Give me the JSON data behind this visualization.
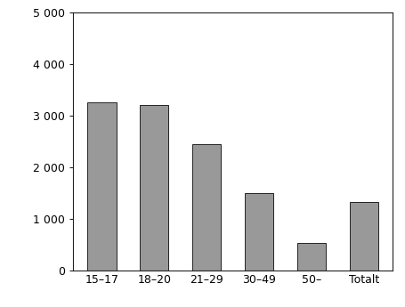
{
  "categories": [
    "15–17",
    "18–20",
    "21–29",
    "30–49",
    "50–",
    "Totalt"
  ],
  "values": [
    3250,
    3200,
    2450,
    1500,
    520,
    1330
  ],
  "bar_color": "#999999",
  "bar_edge_color": "#222222",
  "ylim": [
    0,
    5000
  ],
  "yticks": [
    0,
    1000,
    2000,
    3000,
    4000,
    5000
  ],
  "ytick_labels": [
    "0",
    "1 000",
    "2 000",
    "3 000",
    "4 000",
    "5 000"
  ],
  "background_color": "#ffffff",
  "bar_width": 0.55,
  "spine_color": "#222222",
  "tick_fontsize": 9
}
